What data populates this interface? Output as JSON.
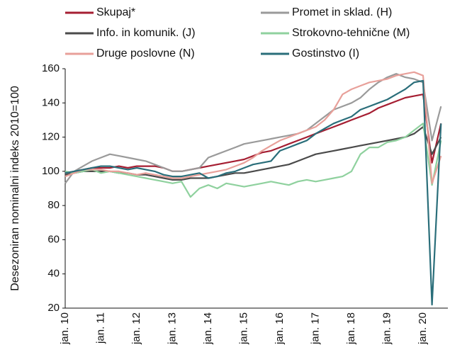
{
  "chart_data": {
    "type": "line",
    "y_label": "Desezoniran nominalni indeks 2010=100",
    "categories": [
      "jan. 10",
      null,
      null,
      null,
      "jan. 11",
      null,
      null,
      null,
      "jan. 12",
      null,
      null,
      null,
      "jan. 13",
      null,
      null,
      null,
      "jan. 14",
      null,
      null,
      null,
      "jan. 15",
      null,
      null,
      null,
      "jan. 16",
      null,
      null,
      null,
      "jan. 17",
      null,
      null,
      null,
      "jan. 18",
      null,
      null,
      null,
      "jan. 19",
      null,
      null,
      null,
      "jan. 20",
      null,
      null
    ],
    "ylim": [
      20,
      160
    ],
    "yticks": [
      20,
      40,
      60,
      80,
      100,
      120,
      140,
      160
    ],
    "series": [
      {
        "name": "Skupaj*",
        "color": "#a51e32",
        "values": [
          99,
          100,
          101,
          102,
          102,
          102,
          103,
          102,
          103,
          103,
          103,
          102,
          100,
          100,
          101,
          102,
          103,
          104,
          105,
          106,
          107,
          109,
          111,
          112,
          114,
          116,
          118,
          120,
          122,
          124,
          126,
          128,
          130,
          132,
          134,
          137,
          139,
          141,
          143,
          144,
          145,
          105,
          128
        ]
      },
      {
        "name": "Promet in sklad. (H)",
        "color": "#9a9a9a",
        "values": [
          93,
          100,
          103,
          106,
          108,
          110,
          109,
          108,
          107,
          106,
          104,
          102,
          100,
          100,
          101,
          102,
          108,
          110,
          112,
          114,
          116,
          117,
          118,
          119,
          120,
          121,
          122,
          124,
          128,
          132,
          136,
          138,
          140,
          143,
          148,
          152,
          155,
          157,
          155,
          154,
          152,
          118,
          138
        ]
      },
      {
        "name": "Info. in komunik. (J)",
        "color": "#4a4a4a",
        "values": [
          98,
          99,
          100,
          100,
          100,
          100,
          99,
          99,
          98,
          98,
          97,
          96,
          95,
          95,
          96,
          96,
          96,
          97,
          98,
          99,
          99,
          100,
          101,
          102,
          103,
          104,
          106,
          108,
          110,
          111,
          112,
          113,
          114,
          115,
          116,
          117,
          118,
          119,
          120,
          122,
          126,
          110,
          120
        ]
      },
      {
        "name": "Strokovno-tehnične (M)",
        "color": "#8fd19e",
        "values": [
          100,
          99,
          100,
          101,
          99,
          100,
          99,
          98,
          97,
          96,
          95,
          94,
          93,
          94,
          85,
          90,
          92,
          90,
          93,
          92,
          91,
          92,
          93,
          94,
          93,
          92,
          94,
          95,
          94,
          95,
          96,
          97,
          100,
          110,
          114,
          114,
          117,
          118,
          120,
          124,
          128,
          92,
          118
        ]
      },
      {
        "name": "Druge poslovne (N)",
        "color": "#e8a09a",
        "values": [
          97,
          99,
          101,
          101,
          101,
          100,
          100,
          99,
          98,
          99,
          98,
          97,
          96,
          96,
          97,
          98,
          99,
          100,
          101,
          103,
          105,
          108,
          112,
          115,
          118,
          120,
          122,
          124,
          126,
          130,
          136,
          145,
          148,
          150,
          152,
          153,
          154,
          156,
          157,
          158,
          156,
          93,
          109
        ]
      },
      {
        "name": "Gostinstvo (I)",
        "color": "#2a6e7a",
        "values": [
          99,
          100,
          101,
          102,
          103,
          103,
          102,
          101,
          102,
          101,
          100,
          98,
          97,
          97,
          98,
          99,
          96,
          97,
          99,
          100,
          102,
          104,
          105,
          106,
          112,
          114,
          116,
          118,
          122,
          125,
          128,
          130,
          132,
          136,
          138,
          140,
          142,
          145,
          148,
          152,
          153,
          22,
          128
        ]
      }
    ]
  }
}
